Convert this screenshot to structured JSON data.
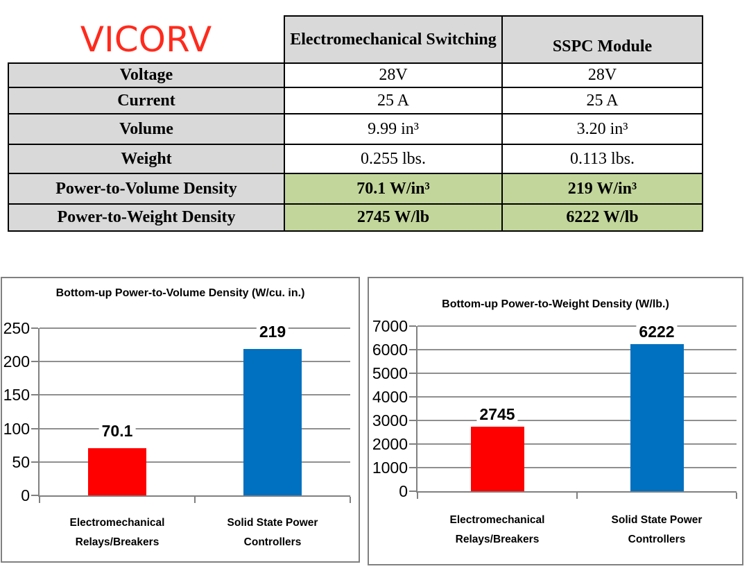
{
  "logo": {
    "text": "VICORV",
    "color": "#ff2a1c"
  },
  "comparison_table": {
    "header": {
      "electromechanical": "Electromechanical Switching",
      "sspc": "SSPC Module"
    },
    "rows": [
      {
        "label": "Voltage",
        "electromechanical": "28V",
        "sspc": "28V"
      },
      {
        "label": "Current",
        "electromechanical": "25 A",
        "sspc": "25 A"
      },
      {
        "label": "Volume",
        "electromechanical": "9.99 in³",
        "sspc": "3.20 in³"
      },
      {
        "label": "Weight",
        "electromechanical": "0.255 lbs.",
        "sspc": "0.113 lbs."
      },
      {
        "label": "Power-to-Volume Density",
        "electromechanical": "70.1 W/in³",
        "sspc": "219 W/in³"
      },
      {
        "label": "Power-to-Weight Density",
        "electromechanical": "2745 W/lb",
        "sspc": "6222 W/lb"
      }
    ],
    "colors": {
      "header_bg": "#d9d9d9",
      "label_bg": "#d9d9d9",
      "highlight_bg": "#c2d69b",
      "border": "#000000"
    }
  },
  "chart_data": [
    {
      "type": "bar",
      "title": "Bottom-up Power-to-Volume Density (W/cu. in.)",
      "categories": [
        "Electromechanical Relays/Breakers",
        "Solid State Power Controllers"
      ],
      "values": [
        70.1,
        219
      ],
      "value_labels": [
        "70.1",
        "219"
      ],
      "bar_colors": [
        "#ff0000",
        "#0070c0"
      ],
      "xlabel": "",
      "ylabel": "",
      "ylim": [
        0,
        250
      ],
      "yticks": [
        0,
        50,
        100,
        150,
        200,
        250
      ],
      "grid": true,
      "legend": "none",
      "gridline_color": "#8f8f8f",
      "axis_color": "#808080"
    },
    {
      "type": "bar",
      "title": "Bottom-up Power-to-Weight Density (W/lb.)",
      "categories": [
        "Electromechanical Relays/Breakers",
        "Solid State Power Controllers"
      ],
      "values": [
        2745,
        6222
      ],
      "value_labels": [
        "2745",
        "6222"
      ],
      "bar_colors": [
        "#ff0000",
        "#0070c0"
      ],
      "xlabel": "",
      "ylabel": "",
      "ylim": [
        0,
        7000
      ],
      "yticks": [
        0,
        1000,
        2000,
        3000,
        4000,
        5000,
        6000,
        7000
      ],
      "grid": true,
      "legend": "none",
      "gridline_color": "#8f8f8f",
      "axis_color": "#808080"
    }
  ]
}
